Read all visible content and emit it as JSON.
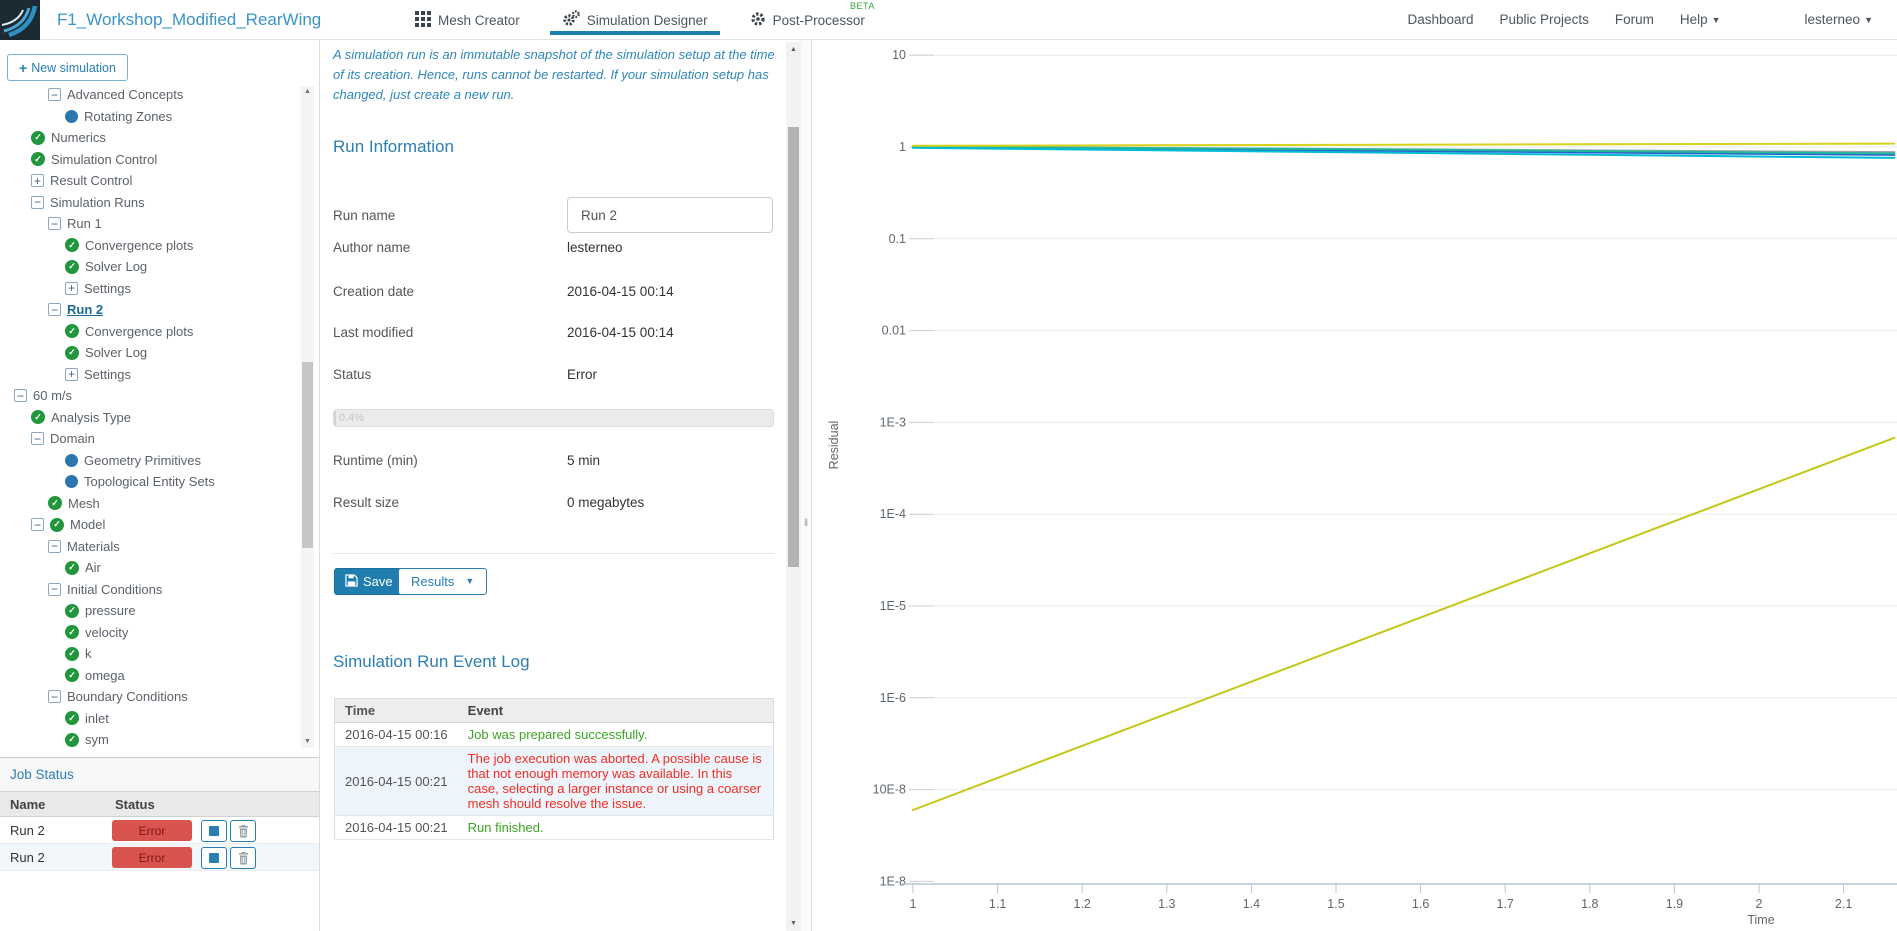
{
  "navbar": {
    "project_title": "F1_Workshop_Modified_RearWing",
    "tabs": [
      {
        "label": "Mesh Creator"
      },
      {
        "label": "Simulation Designer"
      },
      {
        "label": "Post-Processor",
        "badge": "BETA"
      }
    ],
    "links": {
      "dashboard": "Dashboard",
      "public_projects": "Public Projects",
      "forum": "Forum",
      "help": "Help",
      "user": "lesterneo"
    }
  },
  "sidebar": {
    "new_simulation_label": "New simulation",
    "tree": {
      "items": [
        {
          "label": "Advanced Concepts",
          "icon": "minus",
          "depth": 2
        },
        {
          "label": "Rotating Zones",
          "icon": "dot",
          "depth": 3
        },
        {
          "label": "Numerics",
          "icon": "check",
          "depth": 1
        },
        {
          "label": "Simulation Control",
          "icon": "check",
          "depth": 1
        },
        {
          "label": "Result Control",
          "icon": "plus",
          "depth": 1
        },
        {
          "label": "Simulation Runs",
          "icon": "minus",
          "depth": 1
        },
        {
          "label": "Run 1",
          "icon": "minus",
          "depth": 2
        },
        {
          "label": "Convergence plots",
          "icon": "check",
          "depth": 3
        },
        {
          "label": "Solver Log",
          "icon": "check",
          "depth": 3
        },
        {
          "label": "Settings",
          "icon": "plus",
          "depth": 3
        },
        {
          "label": "Run 2",
          "icon": "minus",
          "depth": 2,
          "selected": true
        },
        {
          "label": "Convergence plots",
          "icon": "check",
          "depth": 3
        },
        {
          "label": "Solver Log",
          "icon": "check",
          "depth": 3
        },
        {
          "label": "Settings",
          "icon": "plus",
          "depth": 3
        },
        {
          "label": "60 m/s",
          "icon": "minus",
          "depth": 0
        },
        {
          "label": "Analysis Type",
          "icon": "check",
          "depth": 1
        },
        {
          "label": "Domain",
          "icon": "minus",
          "depth": 1
        },
        {
          "label": "Geometry Primitives",
          "icon": "dot",
          "depth": 3
        },
        {
          "label": "Topological Entity Sets",
          "icon": "dot",
          "depth": 3
        },
        {
          "label": "Mesh",
          "icon": "check",
          "depth": 2
        },
        {
          "label": "Model",
          "icon": "minus-check",
          "depth": 1
        },
        {
          "label": "Materials",
          "icon": "minus",
          "depth": 2
        },
        {
          "label": "Air",
          "icon": "check",
          "depth": 3
        },
        {
          "label": "Initial Conditions",
          "icon": "minus",
          "depth": 2
        },
        {
          "label": "pressure",
          "icon": "check",
          "depth": 3
        },
        {
          "label": "velocity",
          "icon": "check",
          "depth": 3
        },
        {
          "label": "k",
          "icon": "check",
          "depth": 3
        },
        {
          "label": "omega",
          "icon": "check",
          "depth": 3
        },
        {
          "label": "Boundary Conditions",
          "icon": "minus",
          "depth": 2
        },
        {
          "label": "inlet",
          "icon": "check",
          "depth": 3
        },
        {
          "label": "sym",
          "icon": "check",
          "depth": 3
        }
      ]
    },
    "job_status": {
      "title": "Job Status",
      "columns": [
        "Name",
        "Status"
      ],
      "rows": [
        {
          "name": "Run 2",
          "status": "Error"
        },
        {
          "name": "Run 2",
          "status": "Error"
        }
      ]
    }
  },
  "main": {
    "description": "A simulation run is an immutable snapshot of the simulation setup at the time of its creation. Hence, runs cannot be restarted. If your simulation setup has changed, just create a new run.",
    "run_information": {
      "title": "Run Information",
      "fields": [
        {
          "label": "Run name",
          "value": "Run 2"
        },
        {
          "label": "Author name",
          "value": "lesterneo"
        },
        {
          "label": "Creation date",
          "value": "2016-04-15 00:14"
        },
        {
          "label": "Last modified",
          "value": "2016-04-15 00:14"
        },
        {
          "label": "Status",
          "value": "Error"
        },
        {
          "label": "Runtime (min)",
          "value": "5 min"
        },
        {
          "label": "Result size",
          "value": "0 megabytes"
        }
      ],
      "progress_label": "0.4%"
    },
    "actions": {
      "save": "Save",
      "results": "Results"
    },
    "event_log": {
      "title": "Simulation Run Event Log",
      "columns": [
        "Time",
        "Event"
      ],
      "rows": [
        {
          "time": "2016-04-15 00:16",
          "event": "Job was prepared successfully.",
          "type": "success"
        },
        {
          "time": "2016-04-15 00:21",
          "event": "The job execution was aborted. A possible cause is that not enough memory was available. In this case, selecting a larger instance or using a coarser mesh should resolve the issue.",
          "type": "error"
        },
        {
          "time": "2016-04-15 00:21",
          "event": "Run finished.",
          "type": "success"
        }
      ]
    }
  },
  "chart_data": {
    "type": "line",
    "title": "",
    "xlabel": "Time",
    "ylabel": "Residual",
    "grid": true,
    "legend": false,
    "x_axis": {
      "min": 1,
      "max": 2.16,
      "ticks": [
        1,
        1.1,
        1.2,
        1.3,
        1.4,
        1.5,
        1.6,
        1.7,
        1.8,
        1.9,
        2,
        2.1
      ]
    },
    "y_axis": {
      "scale": "log",
      "ticks": [
        {
          "label": "10",
          "value": 10
        },
        {
          "label": "1",
          "value": 1
        },
        {
          "label": "0.1",
          "value": 0.1
        },
        {
          "label": "0.01",
          "value": 0.01
        },
        {
          "label": "1E-3",
          "value": 0.001
        },
        {
          "label": "1E-4",
          "value": 0.0001
        },
        {
          "label": "1E-5",
          "value": 1e-05
        },
        {
          "label": "1E-6",
          "value": 1e-06
        },
        {
          "label": "10E-8",
          "value": 1e-07
        },
        {
          "label": "1E-8",
          "value": 1e-08
        }
      ]
    },
    "series": [
      {
        "name": "residual-blue",
        "color": "#2a5fd0",
        "points": [
          [
            1,
            1.0
          ],
          [
            2.16,
            0.82
          ]
        ]
      },
      {
        "name": "residual-gray",
        "color": "#9aa0a6",
        "points": [
          [
            1,
            1.01
          ],
          [
            2.16,
            0.88
          ]
        ]
      },
      {
        "name": "residual-teal",
        "color": "#1eb89b",
        "points": [
          [
            1,
            1.0
          ],
          [
            1.5,
            0.95
          ],
          [
            2.16,
            0.85
          ]
        ]
      },
      {
        "name": "residual-cyan",
        "color": "#00bcd4",
        "points": [
          [
            1,
            0.98
          ],
          [
            2.16,
            0.76
          ]
        ]
      },
      {
        "name": "residual-yellow-rising",
        "color": "#c2c715",
        "points": [
          [
            1,
            6e-08
          ],
          [
            2.16,
            0.00068
          ]
        ]
      },
      {
        "name": "residual-yellow-flat",
        "color": "#d6d21d",
        "points": [
          [
            1,
            1.03
          ],
          [
            2.16,
            1.09
          ]
        ]
      }
    ]
  }
}
